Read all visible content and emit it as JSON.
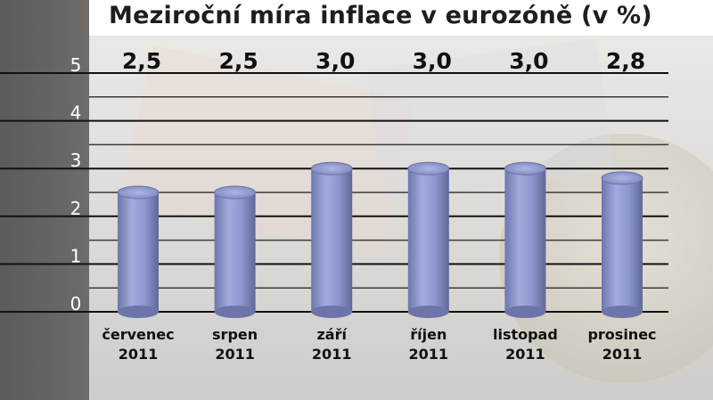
{
  "chart_data": {
    "type": "bar",
    "title": "Meziroční míra inflace v eurozóně (v %)",
    "categories": [
      [
        "červenec",
        "2011"
      ],
      [
        "srpen",
        "2011"
      ],
      [
        "září",
        "2011"
      ],
      [
        "říjen",
        "2011"
      ],
      [
        "listopad",
        "2011"
      ],
      [
        "prosinec",
        "2011"
      ]
    ],
    "values": [
      2.5,
      2.5,
      3.0,
      3.0,
      3.0,
      2.8
    ],
    "value_labels": [
      "2,5",
      "2,5",
      "3,0",
      "3,0",
      "3,0",
      "2,8"
    ],
    "yticks": [
      0,
      1,
      2,
      3,
      4,
      5
    ],
    "ylim": [
      0,
      5
    ],
    "grid": true,
    "bar_color": "#8f98cf"
  }
}
